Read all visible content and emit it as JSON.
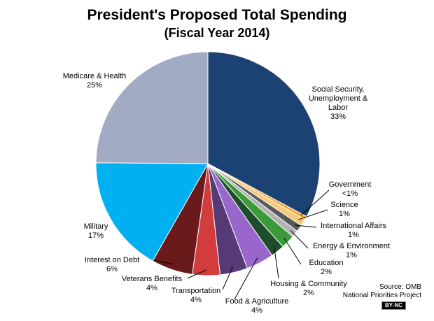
{
  "chart_data": {
    "type": "pie",
    "title": "President's Proposed Total Spending",
    "subtitle": "(Fiscal Year 2014)",
    "categories": [
      "Social Security, Unemployment & Labor",
      "Government",
      "Science",
      "International Affairs",
      "Energy & Environment",
      "Education",
      "Housing & Community",
      "Food & Agriculture",
      "Transportation",
      "Veterans Benefits",
      "Interest on Debt",
      "Military",
      "Medicare & Health"
    ],
    "values": [
      33,
      0.5,
      1,
      1,
      1,
      2,
      2,
      4,
      4,
      4,
      6,
      17,
      25
    ],
    "value_labels": [
      "33%",
      "<1%",
      "1%",
      "1%",
      "1%",
      "2%",
      "2%",
      "4%",
      "4%",
      "4%",
      "6%",
      "17%",
      "25%"
    ],
    "colors": [
      "#1c4273",
      "#f4a531",
      "#f7c97a",
      "#5a5a5a",
      "#b3b3b3",
      "#3b9b3b",
      "#1e4d2b",
      "#9966cc",
      "#553a75",
      "#d23c3c",
      "#6a1a1a",
      "#00b0f0",
      "#a3abc4"
    ],
    "source": [
      "Source: OMB",
      "National Priorities Project"
    ],
    "license": "BY-NC"
  }
}
